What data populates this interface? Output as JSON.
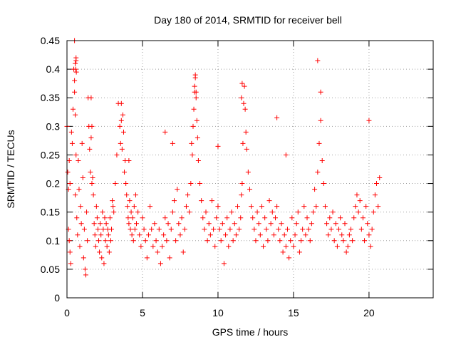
{
  "chart_data": {
    "type": "scatter",
    "title": "Day 180 of 2014, SRMTID for receiver bell",
    "xlabel": "GPS time / hours",
    "ylabel": "SRMTID / TECUs",
    "xlim": [
      0,
      24.25
    ],
    "ylim": [
      0,
      0.45
    ],
    "xticks": [
      0,
      5,
      10,
      15,
      20
    ],
    "xtick_labels": [
      "0",
      "5",
      "10",
      "15",
      "20"
    ],
    "yticks": [
      0,
      0.05,
      0.1,
      0.15,
      0.2,
      0.25,
      0.3,
      0.35,
      0.4,
      0.45
    ],
    "ytick_labels": [
      "0",
      "0.05",
      "0.1",
      "0.15",
      "0.2",
      "0.25",
      "0.3",
      "0.35",
      "0.4",
      "0.45"
    ],
    "grid": true,
    "marker": "+",
    "color": "#ff0000",
    "series": [
      {
        "name": "SRMTID",
        "x": [
          0.0,
          0.1,
          0.15,
          0.2,
          0.25,
          0.3,
          0.1,
          0.2,
          0.05,
          0.15,
          0.35,
          0.4,
          0.45,
          0.5,
          0.5,
          0.55,
          0.6,
          0.5,
          0.55,
          0.6,
          0.55,
          0.65,
          0.7,
          0.75,
          0.8,
          0.85,
          0.9,
          0.95,
          1.0,
          1.05,
          1.1,
          1.15,
          1.2,
          1.25,
          1.3,
          1.35,
          1.4,
          1.45,
          1.5,
          1.55,
          1.6,
          1.65,
          1.7,
          1.75,
          1.8,
          1.85,
          1.9,
          1.95,
          2.0,
          2.05,
          2.1,
          2.15,
          2.2,
          2.25,
          2.3,
          2.35,
          2.4,
          2.45,
          2.5,
          2.55,
          2.6,
          2.65,
          2.7,
          2.75,
          2.8,
          2.85,
          2.9,
          2.95,
          3.0,
          3.05,
          3.1,
          3.2,
          3.3,
          3.4,
          3.5,
          3.55,
          3.6,
          3.65,
          3.7,
          3.75,
          3.8,
          3.85,
          3.9,
          3.95,
          4.0,
          4.05,
          4.1,
          4.15,
          4.2,
          4.25,
          4.3,
          4.35,
          4.4,
          4.45,
          4.5,
          4.55,
          4.6,
          4.7,
          4.8,
          4.9,
          5.0,
          5.1,
          5.2,
          5.3,
          5.4,
          5.5,
          5.6,
          5.7,
          5.8,
          5.9,
          6.0,
          6.1,
          6.2,
          6.3,
          6.4,
          6.5,
          6.6,
          6.7,
          6.8,
          6.9,
          7.0,
          7.1,
          7.2,
          7.3,
          7.4,
          7.5,
          7.6,
          7.7,
          7.8,
          7.9,
          8.0,
          8.1,
          8.2,
          8.25,
          8.3,
          8.35,
          8.4,
          8.45,
          8.5,
          8.55,
          8.6,
          8.65,
          8.7,
          8.8,
          8.9,
          9.0,
          9.1,
          9.2,
          9.3,
          9.4,
          9.5,
          9.6,
          9.7,
          9.8,
          9.9,
          10.0,
          10.1,
          10.2,
          10.3,
          10.4,
          10.5,
          10.6,
          10.7,
          10.8,
          10.9,
          11.0,
          11.1,
          11.2,
          11.3,
          11.4,
          11.5,
          11.55,
          11.6,
          11.65,
          11.7,
          11.75,
          11.8,
          11.85,
          11.9,
          12.0,
          12.1,
          12.2,
          12.3,
          12.4,
          12.5,
          12.6,
          12.7,
          12.8,
          12.9,
          13.0,
          13.1,
          13.2,
          13.3,
          13.4,
          13.5,
          13.6,
          13.7,
          13.8,
          13.9,
          14.0,
          14.1,
          14.2,
          14.3,
          14.4,
          14.5,
          14.6,
          14.7,
          14.8,
          14.9,
          15.0,
          15.1,
          15.2,
          15.3,
          15.4,
          15.5,
          15.6,
          15.7,
          15.8,
          15.9,
          16.0,
          16.1,
          16.2,
          16.3,
          16.4,
          16.5,
          16.6,
          16.7,
          16.8,
          16.9,
          17.0,
          17.1,
          17.2,
          17.3,
          17.4,
          17.5,
          17.6,
          17.7,
          17.8,
          17.9,
          18.0,
          18.1,
          18.2,
          18.3,
          18.4,
          18.5,
          18.6,
          18.7,
          18.8,
          18.9,
          19.0,
          19.1,
          19.2,
          19.3,
          19.4,
          19.5,
          19.6,
          19.7,
          19.8,
          19.9,
          20.0,
          20.1,
          20.2,
          20.3,
          20.4,
          20.5,
          20.6,
          20.7,
          0.6,
          0.62,
          0.58,
          1.6,
          1.65,
          8.5,
          8.45,
          8.55,
          11.6,
          11.55,
          16.6,
          16.8,
          20.0,
          13.9,
          14.5,
          6.5,
          10.0,
          7.0,
          4.1,
          3.6
        ],
        "y": [
          0.3,
          0.19,
          0.24,
          0.08,
          0.06,
          0.29,
          0.12,
          0.2,
          0.22,
          0.1,
          0.27,
          0.33,
          0.4,
          0.45,
          0.38,
          0.41,
          0.42,
          0.36,
          0.32,
          0.25,
          0.18,
          0.14,
          0.11,
          0.24,
          0.19,
          0.09,
          0.16,
          0.13,
          0.27,
          0.21,
          0.07,
          0.12,
          0.05,
          0.04,
          0.15,
          0.1,
          0.35,
          0.3,
          0.26,
          0.22,
          0.28,
          0.2,
          0.21,
          0.18,
          0.13,
          0.11,
          0.09,
          0.16,
          0.14,
          0.12,
          0.1,
          0.08,
          0.13,
          0.11,
          0.07,
          0.15,
          0.12,
          0.06,
          0.14,
          0.1,
          0.13,
          0.09,
          0.12,
          0.11,
          0.08,
          0.14,
          0.1,
          0.12,
          0.17,
          0.16,
          0.15,
          0.2,
          0.25,
          0.34,
          0.3,
          0.27,
          0.31,
          0.26,
          0.32,
          0.29,
          0.22,
          0.24,
          0.2,
          0.18,
          0.16,
          0.14,
          0.13,
          0.17,
          0.12,
          0.15,
          0.11,
          0.14,
          0.1,
          0.16,
          0.12,
          0.18,
          0.13,
          0.15,
          0.11,
          0.09,
          0.14,
          0.12,
          0.1,
          0.07,
          0.11,
          0.16,
          0.12,
          0.09,
          0.13,
          0.1,
          0.08,
          0.12,
          0.06,
          0.09,
          0.11,
          0.14,
          0.1,
          0.13,
          0.07,
          0.12,
          0.15,
          0.17,
          0.1,
          0.19,
          0.13,
          0.11,
          0.14,
          0.08,
          0.12,
          0.16,
          0.18,
          0.15,
          0.2,
          0.27,
          0.25,
          0.3,
          0.33,
          0.36,
          0.39,
          0.35,
          0.31,
          0.28,
          0.24,
          0.2,
          0.17,
          0.14,
          0.12,
          0.15,
          0.1,
          0.13,
          0.11,
          0.17,
          0.12,
          0.09,
          0.14,
          0.16,
          0.12,
          0.1,
          0.13,
          0.06,
          0.11,
          0.14,
          0.09,
          0.12,
          0.15,
          0.1,
          0.13,
          0.11,
          0.16,
          0.12,
          0.14,
          0.18,
          0.2,
          0.27,
          0.34,
          0.37,
          0.33,
          0.29,
          0.26,
          0.22,
          0.19,
          0.16,
          0.14,
          0.12,
          0.1,
          0.15,
          0.13,
          0.11,
          0.16,
          0.09,
          0.14,
          0.12,
          0.1,
          0.17,
          0.13,
          0.15,
          0.11,
          0.14,
          0.16,
          0.12,
          0.1,
          0.13,
          0.08,
          0.11,
          0.09,
          0.12,
          0.07,
          0.1,
          0.14,
          0.09,
          0.11,
          0.13,
          0.15,
          0.08,
          0.1,
          0.12,
          0.16,
          0.11,
          0.14,
          0.12,
          0.1,
          0.13,
          0.15,
          0.19,
          0.16,
          0.22,
          0.27,
          0.31,
          0.24,
          0.2,
          0.16,
          0.13,
          0.11,
          0.14,
          0.12,
          0.15,
          0.1,
          0.13,
          0.09,
          0.12,
          0.14,
          0.11,
          0.1,
          0.13,
          0.08,
          0.09,
          0.11,
          0.12,
          0.1,
          0.14,
          0.16,
          0.18,
          0.15,
          0.17,
          0.12,
          0.14,
          0.1,
          0.16,
          0.13,
          0.11,
          0.09,
          0.12,
          0.15,
          0.18,
          0.2,
          0.16,
          0.21,
          0.415,
          0.395,
          0.4,
          0.35,
          0.3,
          0.385,
          0.37,
          0.36,
          0.375,
          0.35,
          0.415,
          0.36,
          0.31,
          0.315,
          0.25,
          0.29,
          0.265,
          0.27,
          0.24,
          0.34
        ]
      }
    ]
  }
}
